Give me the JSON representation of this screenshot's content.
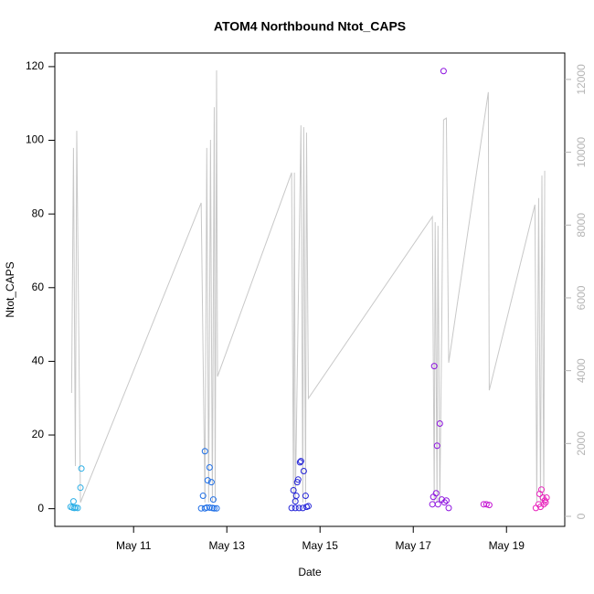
{
  "chart_data": {
    "type": "scatter",
    "title": "ATOM4 Northbound Ntot_CAPS",
    "xlabel": "Date",
    "ylabel": "Ntot_CAPS",
    "xlim": [
      9.31,
      20.25
    ],
    "ylim": [
      -4.8,
      123.7
    ],
    "y2lim": [
      -276,
      12726
    ],
    "xticks": [
      {
        "value": 11,
        "label": "May 11"
      },
      {
        "value": 13,
        "label": "May 13"
      },
      {
        "value": 15,
        "label": "May 15"
      },
      {
        "value": 17,
        "label": "May 17"
      },
      {
        "value": 19,
        "label": "May 19"
      }
    ],
    "yticks": [
      0,
      20,
      40,
      60,
      80,
      100,
      120
    ],
    "y2ticks": [
      0,
      2000,
      4000,
      6000,
      8000,
      10000,
      12000
    ],
    "series": [
      {
        "type": "line",
        "axis": "y2",
        "color": "#c8c8c8",
        "x": [
          9.67,
          9.71,
          9.75,
          9.78,
          9.86,
          12.45,
          12.53,
          12.57,
          12.61,
          12.65,
          12.69,
          12.73,
          12.75,
          12.78,
          12.8,
          14.39,
          14.43,
          14.45,
          14.47,
          14.59,
          14.63,
          14.65,
          14.69,
          14.71,
          14.75,
          17.41,
          17.45,
          17.47,
          17.51,
          17.53,
          17.57,
          17.61,
          17.65,
          17.71,
          17.76,
          18.61,
          18.63,
          19.61,
          19.65,
          19.69,
          19.73,
          19.76,
          19.8,
          19.82
        ],
        "values": [
          3390,
          10120,
          1380,
          10590,
          380,
          8610,
          380,
          10120,
          380,
          10340,
          380,
          11240,
          380,
          12250,
          3840,
          9440,
          380,
          9440,
          380,
          10740,
          380,
          10690,
          380,
          10540,
          3240,
          8230,
          380,
          8080,
          380,
          7980,
          380,
          5120,
          10890,
          10940,
          4220,
          11650,
          3460,
          8560,
          380,
          8740,
          380,
          9360,
          380,
          9490
        ]
      },
      {
        "type": "scatter",
        "color": "#29aee6",
        "x": [
          9.65,
          9.69,
          9.73,
          9.76,
          9.8,
          9.71,
          9.86,
          9.88
        ],
        "values": [
          0.5,
          0.3,
          0.2,
          0.3,
          0.2,
          2.0,
          5.7,
          10.9
        ]
      },
      {
        "type": "scatter",
        "color": "#1f6fe6",
        "x": [
          12.45,
          12.49,
          12.53,
          12.59,
          12.63,
          12.67,
          12.71,
          12.53,
          12.57,
          12.63,
          12.69,
          12.73,
          12.78
        ],
        "values": [
          0.1,
          3.5,
          15.6,
          7.7,
          11.2,
          7.2,
          2.5,
          0.1,
          0.3,
          0.3,
          0.2,
          0.1,
          0.1
        ]
      },
      {
        "type": "scatter",
        "color": "#2424d8",
        "x": [
          14.43,
          14.47,
          14.49,
          14.51,
          14.53,
          14.57,
          14.59,
          14.65,
          14.69,
          14.39,
          14.47,
          14.55,
          14.63,
          14.71,
          14.75
        ],
        "values": [
          5.0,
          2.0,
          3.5,
          7.2,
          7.9,
          12.6,
          12.9,
          10.2,
          3.5,
          0.2,
          0.2,
          0.2,
          0.2,
          0.5,
          0.7
        ]
      },
      {
        "type": "scatter",
        "color": "#8e14e0",
        "x": [
          17.43,
          17.45,
          17.51,
          17.57,
          17.65,
          17.49,
          17.61,
          17.71,
          17.76,
          17.41,
          17.53,
          17.67
        ],
        "values": [
          3.2,
          38.7,
          17.1,
          23.1,
          118.8,
          4.2,
          2.5,
          2.2,
          0.2,
          1.2,
          1.2,
          1.7
        ]
      },
      {
        "type": "scatter",
        "color": "#c414d2",
        "x": [
          18.51,
          18.57,
          18.63
        ],
        "values": [
          1.2,
          1.2,
          1.0
        ]
      },
      {
        "type": "scatter",
        "color": "#e822bc",
        "x": [
          19.63,
          19.69,
          19.75,
          19.71,
          19.78,
          19.82,
          19.84,
          19.73,
          19.8,
          19.86
        ],
        "values": [
          0.2,
          1.2,
          5.2,
          4.0,
          3.0,
          2.2,
          1.7,
          0.5,
          1.2,
          3.0
        ]
      }
    ]
  }
}
